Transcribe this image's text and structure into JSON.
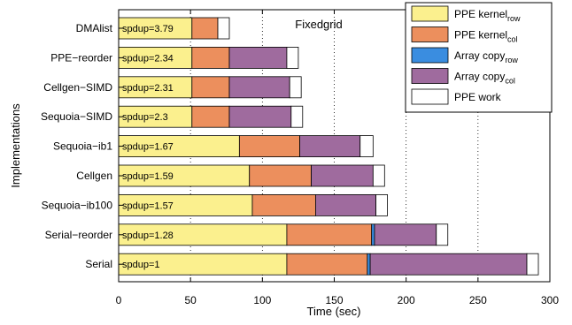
{
  "chart_data": {
    "type": "bar",
    "orientation": "horizontal",
    "stacked": true,
    "title": "Fixedgrid",
    "xlabel": "Time (sec)",
    "ylabel": "Implementations",
    "xlim": [
      0,
      300
    ],
    "xticks": [
      0,
      50,
      100,
      150,
      200,
      250,
      300
    ],
    "grid": "vertical dotted",
    "legend_position": "top-right",
    "categories": [
      "DMAlist",
      "PPE−reorder",
      "Cellgen−SIMD",
      "Sequoia−SIMD",
      "Sequoia−ib1",
      "Cellgen",
      "Sequoia−ib100",
      "Serial−reorder",
      "Serial"
    ],
    "bar_labels": [
      "spdup=3.79",
      "spdup=2.34",
      "spdup=2.31",
      "spdup=2.3",
      "spdup=1.67",
      "spdup=1.59",
      "spdup=1.57",
      "spdup=1.28",
      "spdup=1"
    ],
    "series": [
      {
        "name": "PPE kernel",
        "subscript": "row",
        "color": "#fbf08e",
        "values": [
          51,
          51,
          51,
          51,
          84,
          91,
          93,
          117,
          117
        ]
      },
      {
        "name": "PPE kernel",
        "subscript": "col",
        "color": "#ec8f5d",
        "values": [
          18,
          26,
          26,
          26,
          42,
          43,
          44,
          59,
          56
        ]
      },
      {
        "name": "Array copy",
        "subscript": "row",
        "color": "#3a8de0",
        "values": [
          0,
          0,
          0,
          0,
          0,
          0,
          0,
          2,
          2
        ]
      },
      {
        "name": "Array copy",
        "subscript": "col",
        "color": "#9f6b9e",
        "values": [
          0,
          40,
          42,
          43,
          42,
          43,
          42,
          43,
          109
        ]
      },
      {
        "name": "PPE work",
        "subscript": "",
        "color": "#ffffff",
        "values": [
          8,
          8,
          8,
          8,
          9,
          8,
          8,
          8,
          8
        ]
      }
    ]
  }
}
